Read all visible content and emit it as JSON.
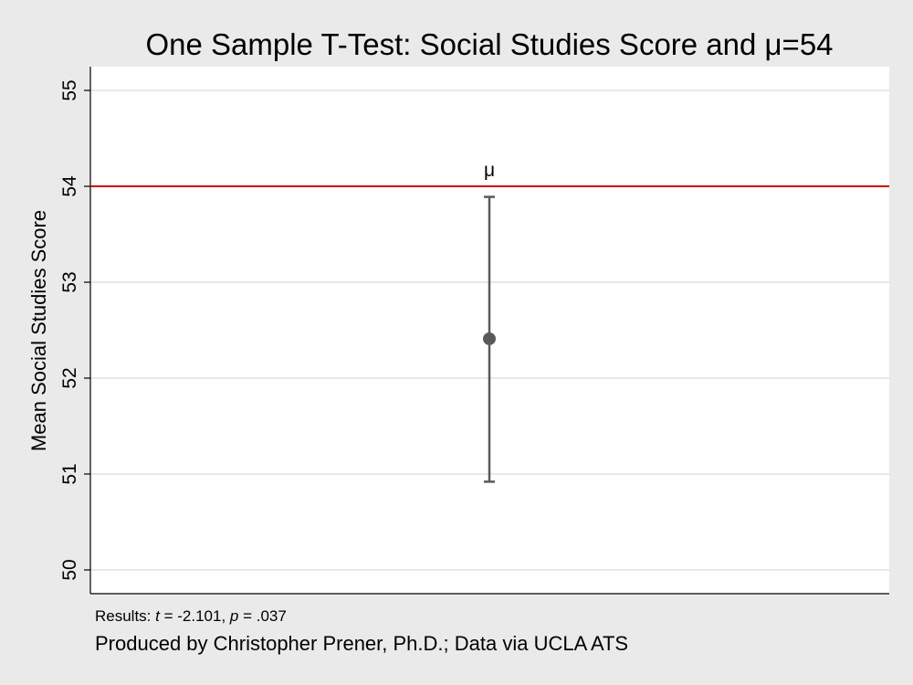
{
  "chart_data": {
    "type": "scatter",
    "title": "One Sample T-Test: Social Studies Score and μ=54",
    "xlabel": "",
    "ylabel": "Mean Social Studies Score",
    "ylim": [
      49.75,
      55.25
    ],
    "yticks": [
      50,
      51,
      52,
      53,
      54,
      55
    ],
    "grid": true,
    "series": [
      {
        "mean": 52.41,
        "ci_lower": 50.92,
        "ci_upper": 53.89
      }
    ],
    "reference_line": {
      "value": 54,
      "label": "μ",
      "color": "#cc0000"
    },
    "colors": {
      "point": "#5a5a5a",
      "errorbar": "#5a5a5a",
      "background": "#eaeaea",
      "plot": "#ffffff",
      "grid": "#e0e0e0"
    }
  },
  "notes": {
    "results_prefix": "Results: ",
    "t_symbol": "t",
    "t_value": " = -2.101, ",
    "p_symbol": "p",
    "p_value": " = .037",
    "credit": "Produced by Christopher Prener, Ph.D.; Data via UCLA ATS"
  }
}
